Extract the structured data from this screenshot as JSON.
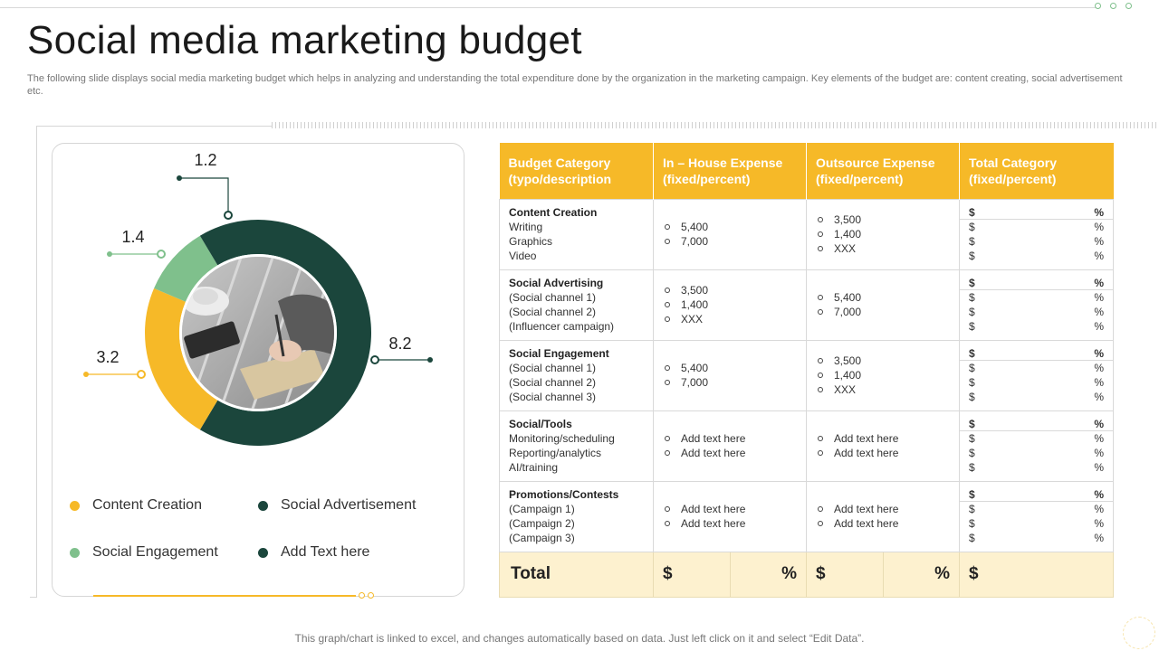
{
  "page": {
    "title": "Social media marketing budget",
    "subtitle": "The following slide displays social media marketing budget which helps in analyzing and understanding the total expenditure done by the organization  in the marketing campaign. Key elements of the budget are: content creating, social advertisement etc.",
    "footer": "This graph/chart is linked to excel,  and changes automatically based on data. Just left click on it and select “Edit Data”."
  },
  "colors": {
    "accent": "#f6b928",
    "dark_green": "#1b463c",
    "light_green": "#7fc08c",
    "total_row_bg": "#fdf1cf"
  },
  "chart_data": {
    "type": "pie",
    "variant": "donut",
    "categories": [
      "Content Creation",
      "Social Advertisement",
      "Social Engagement",
      "Add Text here"
    ],
    "values": [
      3.2,
      8.2,
      1.4,
      1.2
    ],
    "colors": [
      "#f6b928",
      "#1b463c",
      "#7fc08c",
      "#1b463c"
    ],
    "data_labels": [
      "3.2",
      "8.2",
      "1.4",
      "1.2"
    ],
    "center_image": "photo-hand-writing-notebook",
    "legend_position": "bottom"
  },
  "legend": {
    "items": [
      {
        "label": "Content Creation",
        "color": "#f6b928"
      },
      {
        "label": "Social Advertisement",
        "color": "#1b463c"
      },
      {
        "label": "Social Engagement",
        "color": "#7fc08c"
      },
      {
        "label": "Add Text here",
        "color": "#1b463c"
      }
    ]
  },
  "table": {
    "headers": [
      [
        "Budget Category",
        "(typo/description"
      ],
      [
        "In – House Expense",
        "(fixed/percent)"
      ],
      [
        "Outsource Expense",
        "(fixed/percent)"
      ],
      [
        "Total Category",
        "(fixed/percent)"
      ]
    ],
    "rows": [
      {
        "title": "Content Creation",
        "items": [
          "Writing",
          "Graphics",
          "Video"
        ],
        "inhouse": [
          "5,400",
          "7,000"
        ],
        "outsource": [
          "3,500",
          "1,400",
          "XXX"
        ]
      },
      {
        "title": "Social Advertising",
        "items": [
          "(Social channel  1)",
          "(Social channel 2)",
          "(Influencer  campaign)"
        ],
        "inhouse": [
          "3,500",
          "1,400",
          "XXX"
        ],
        "outsource": [
          "5,400",
          "7,000"
        ]
      },
      {
        "title": "Social Engagement",
        "items": [
          "(Social channel  1)",
          "(Social channel 2)",
          "(Social channel  3)"
        ],
        "inhouse": [
          "5,400",
          "7,000"
        ],
        "outsource": [
          "3,500",
          "1,400",
          "XXX"
        ]
      },
      {
        "title": "Social/Tools",
        "items": [
          "Monitoring/scheduling",
          "Reporting/analytics",
          "AI/training"
        ],
        "inhouse": [
          "Add text here",
          "Add text here"
        ],
        "outsource": [
          "Add text here",
          "Add text here"
        ]
      },
      {
        "title": "Promotions/Contests",
        "items": [
          "(Campaign  1)",
          "(Campaign  2)",
          "(Campaign  3)"
        ],
        "inhouse": [
          "Add text here",
          "Add text here"
        ],
        "outsource": [
          "Add text here",
          "Add text here"
        ]
      }
    ],
    "total_cell": {
      "currency": "$",
      "percent": "%",
      "lines": 4
    },
    "total_row": {
      "label": "Total",
      "currency": "$",
      "percent": "%"
    }
  }
}
